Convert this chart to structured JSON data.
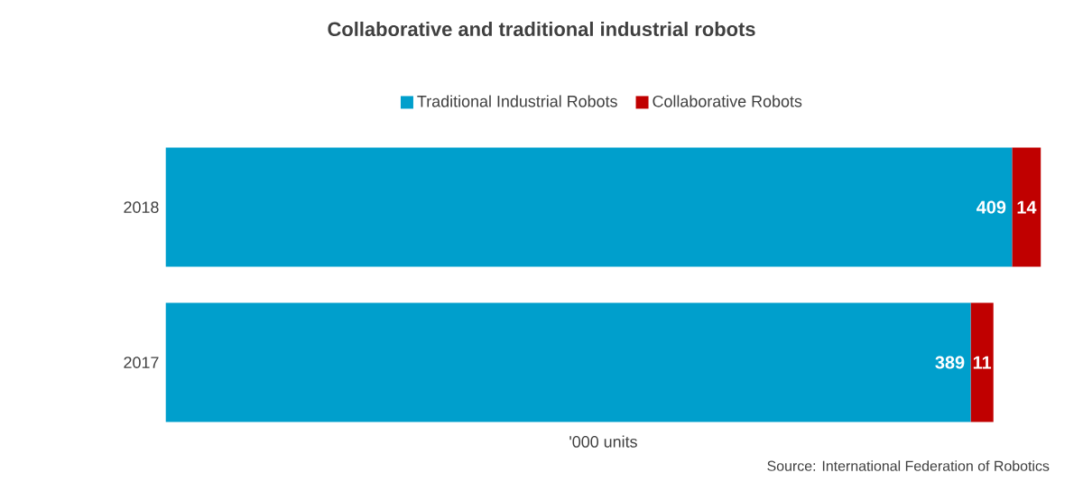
{
  "chart_data": {
    "type": "bar",
    "title": "Collaborative and traditional industrial robots",
    "xlabel": "'000 units",
    "orientation": "horizontal",
    "stacked": true,
    "categories": [
      "2018",
      "2017"
    ],
    "series": [
      {
        "name": "Traditional Industrial Robots",
        "color": "#009fcc",
        "values": [
          409,
          389
        ]
      },
      {
        "name": "Collaborative Robots",
        "color": "#c00000",
        "values": [
          14,
          11
        ]
      }
    ],
    "data_labels": true,
    "legend": "top",
    "tick_labels": "y",
    "annotations": [
      "Source: International Federation of Robotics"
    ]
  }
}
